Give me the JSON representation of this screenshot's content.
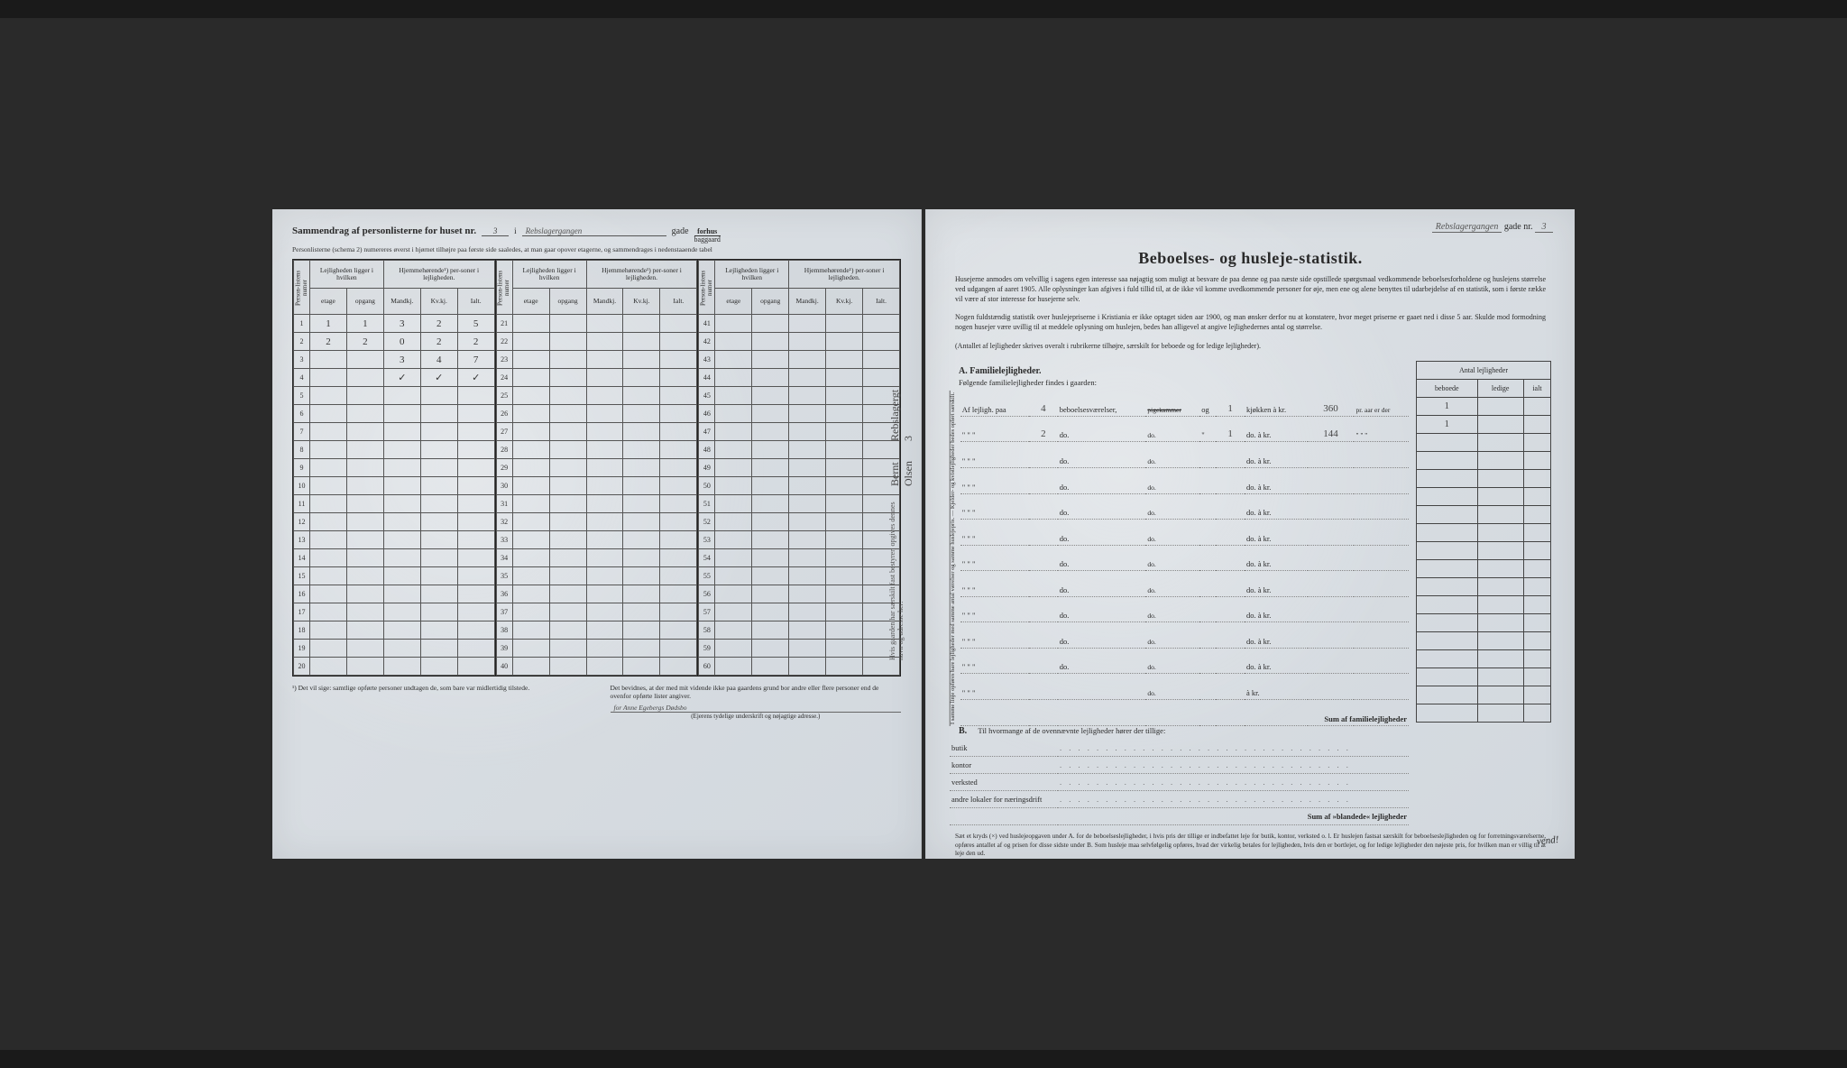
{
  "document": {
    "background_color": "#1a1a1a",
    "page_color": "#d8dce0",
    "ink_color": "#2a2a2a",
    "handwriting_color": "#444444",
    "border_color": "#555555"
  },
  "left_page": {
    "title_prefix": "Sammendrag af personlisterne for huset nr.",
    "house_number": "3",
    "conjunction": "i",
    "street_name": "Rebslagergangen",
    "gade_label": "gade",
    "forhus": "forhus",
    "baggaard": "baggaard",
    "subnote": "Personlisterne (schema 2) numereres øverst i hjørnet tilhøjre paa første side saaledes, at man gaar opover etagerne, og sammendrages i nedenstaaende tabel",
    "col_headers": {
      "personliste": "Person-listens numer",
      "lejlighed_group": "Lejligheden ligger i hvilken",
      "hjemme_group": "Hjemmehørende¹) per-soner i lejligheden.",
      "etage": "etage",
      "opgang": "opgang",
      "mandkj": "Mandkj.",
      "kvkj": "Kv.kj.",
      "ialt": "Ialt."
    },
    "blocks": [
      {
        "start": 1,
        "rows": [
          {
            "n": "1",
            "check": "✓",
            "etage": "1",
            "opgang": "1",
            "m": "3",
            "k": "2",
            "i": "5"
          },
          {
            "n": "2",
            "check": "✓",
            "etage": "2",
            "opgang": "2",
            "m": "0",
            "k": "2",
            "i": "2"
          },
          {
            "n": "3",
            "check": "",
            "etage": "",
            "opgang": "",
            "m": "3",
            "k": "4",
            "i": "7"
          },
          {
            "n": "4",
            "check": "",
            "etage": "",
            "opgang": "",
            "m": "✓",
            "k": "✓",
            "i": "✓"
          },
          {
            "n": "5"
          },
          {
            "n": "6"
          },
          {
            "n": "7"
          },
          {
            "n": "8"
          },
          {
            "n": "9"
          },
          {
            "n": "10"
          },
          {
            "n": "11"
          },
          {
            "n": "12"
          },
          {
            "n": "13"
          },
          {
            "n": "14"
          },
          {
            "n": "15"
          },
          {
            "n": "16"
          },
          {
            "n": "17"
          },
          {
            "n": "18"
          },
          {
            "n": "19"
          },
          {
            "n": "20"
          }
        ]
      },
      {
        "start": 21,
        "rows": [
          {
            "n": "21"
          },
          {
            "n": "22"
          },
          {
            "n": "23"
          },
          {
            "n": "24"
          },
          {
            "n": "25"
          },
          {
            "n": "26"
          },
          {
            "n": "27"
          },
          {
            "n": "28"
          },
          {
            "n": "29"
          },
          {
            "n": "30"
          },
          {
            "n": "31"
          },
          {
            "n": "32"
          },
          {
            "n": "33"
          },
          {
            "n": "34"
          },
          {
            "n": "35"
          },
          {
            "n": "36"
          },
          {
            "n": "37"
          },
          {
            "n": "38"
          },
          {
            "n": "39"
          },
          {
            "n": "40"
          }
        ]
      },
      {
        "start": 41,
        "rows": [
          {
            "n": "41"
          },
          {
            "n": "42"
          },
          {
            "n": "43"
          },
          {
            "n": "44"
          },
          {
            "n": "45"
          },
          {
            "n": "46"
          },
          {
            "n": "47"
          },
          {
            "n": "48"
          },
          {
            "n": "49"
          },
          {
            "n": "50"
          },
          {
            "n": "51"
          },
          {
            "n": "52"
          },
          {
            "n": "53"
          },
          {
            "n": "54"
          },
          {
            "n": "55"
          },
          {
            "n": "56"
          },
          {
            "n": "57"
          },
          {
            "n": "58"
          },
          {
            "n": "59"
          },
          {
            "n": "60"
          }
        ]
      }
    ],
    "footnote1": "¹) Det vil sige: samtlige opførte personer undtagen de, som bare var midlertidig tilstede.",
    "footnote2_a": "Det bevidnes, at der med mit vidende ikke paa gaardens grund bor andre eller flere personer end de ovenfor opførte lister angiver.",
    "signature": "for Anne Egebergs Dødsbo",
    "signature_note": "(Ejerens tydelige underskrift og nøjagtige adresse.)",
    "vertical_label": "Hvis gaarden har særskilt fast bestyrer, opgives dennes navn og adresse her:",
    "vertical_hand1": "Bernt Olsen",
    "vertical_hand2": "Rebslagergt 3"
  },
  "right_page": {
    "corner_street": "Rebslagergangen",
    "corner_gade": "gade nr.",
    "corner_num": "3",
    "title": "Beboelses- og husleje-statistik.",
    "intro": "Husejerne anmodes om velvillig i sagens egen interesse saa nøjagtig som muligt at besvare de paa denne og paa næste side opstillede spørgsmaal vedkommende beboelsesforholdene og huslejens størrelse ved udgangen af aaret 1905. Alle oplysninger kan afgives i fuld tillid til, at de ikke vil komme uvedkommende personer for øje, men ene og alene benyttes til udarbejdelse af en statistik, som i første række vil være af stor interesse for husejerne selv.",
    "intro2": "Nogen fuldstændig statistik over huslejepriserne i Kristiania er ikke optaget siden aar 1900, og man ønsker derfor nu at konstatere, hvor meget priserne er gaaet ned i disse 5 aar. Skulde mod formodning nogen husejer være uvillig til at meddele oplysning om huslejen, bedes han alligevel at angive lejlighedernes antal og størrelse.",
    "intro3": "(Antallet af lejligheder skrives overalt i rubrikerne tilhøjre, særskilt for beboede og for ledige lejligheder).",
    "section_a": "A.  Familielejligheder.",
    "a_instr": "Følgende familielejligheder findes i gaarden:",
    "brace_text": "I samme linje opføres bare lejligheder med samme antal værelser og samme huslejepris. — Kjelder- og kvistlejligheder bedes opført særskilt.",
    "family_rows": [
      {
        "pre": "Af lejligh. paa",
        "rooms": "4",
        "mid": "beboelsesværelser,",
        "pk": "pigekammer",
        "og": "og",
        "kj": "1",
        "kj_lbl": "kjøkken à kr.",
        "kr": "360",
        "post": "pr. aar er der",
        "b": "1",
        "l": "",
        "i": ""
      },
      {
        "pre": "\"    \"    \"",
        "rooms": "2",
        "mid": "do.",
        "pk": "",
        "og": "\"",
        "kj": "1",
        "kj_lbl": "do.  à kr.",
        "kr": "144",
        "post": "\"   \"   \"",
        "b": "1",
        "l": "",
        "i": ""
      },
      {
        "pre": "\"    \"    \"",
        "rooms": "",
        "mid": "do.",
        "pk": "",
        "og": "",
        "kj": "",
        "kj_lbl": "do.  à kr.",
        "kr": "",
        "post": "",
        "b": "",
        "l": "",
        "i": ""
      },
      {
        "pre": "\"    \"    \"",
        "rooms": "",
        "mid": "do.",
        "pk": "",
        "og": "",
        "kj": "",
        "kj_lbl": "do.  à kr.",
        "kr": "",
        "post": "",
        "b": "",
        "l": "",
        "i": ""
      },
      {
        "pre": "\"    \"    \"",
        "rooms": "",
        "mid": "do.",
        "pk": "",
        "og": "",
        "kj": "",
        "kj_lbl": "do.  à kr.",
        "kr": "",
        "post": "",
        "b": "",
        "l": "",
        "i": ""
      },
      {
        "pre": "\"    \"    \"",
        "rooms": "",
        "mid": "do.",
        "pk": "",
        "og": "",
        "kj": "",
        "kj_lbl": "do.  à kr.",
        "kr": "",
        "post": "",
        "b": "",
        "l": "",
        "i": ""
      },
      {
        "pre": "\"    \"    \"",
        "rooms": "",
        "mid": "do.",
        "pk": "",
        "og": "",
        "kj": "",
        "kj_lbl": "do.  à kr.",
        "kr": "",
        "post": "",
        "b": "",
        "l": "",
        "i": ""
      },
      {
        "pre": "\"    \"    \"",
        "rooms": "",
        "mid": "do.",
        "pk": "",
        "og": "",
        "kj": "",
        "kj_lbl": "do.  à kr.",
        "kr": "",
        "post": "",
        "b": "",
        "l": "",
        "i": ""
      },
      {
        "pre": "\"    \"    \"",
        "rooms": "",
        "mid": "do.",
        "pk": "",
        "og": "",
        "kj": "",
        "kj_lbl": "do.  à kr.",
        "kr": "",
        "post": "",
        "b": "",
        "l": "",
        "i": ""
      },
      {
        "pre": "\"    \"    \"",
        "rooms": "",
        "mid": "do.",
        "pk": "",
        "og": "",
        "kj": "",
        "kj_lbl": "do.  à kr.",
        "kr": "",
        "post": "",
        "b": "",
        "l": "",
        "i": ""
      },
      {
        "pre": "\"    \"    \"",
        "rooms": "",
        "mid": "do.",
        "pk": "",
        "og": "",
        "kj": "",
        "kj_lbl": "do.  à kr.",
        "kr": "",
        "post": "",
        "b": "",
        "l": "",
        "i": ""
      },
      {
        "pre": "\"    \"    \"",
        "rooms": "",
        "mid": "",
        "pk": "",
        "og": "",
        "kj": "",
        "kj_lbl": "à kr.",
        "kr": "",
        "post": "",
        "b": "",
        "l": "",
        "i": ""
      }
    ],
    "sum_a": "Sum af familielejligheder",
    "antal_header": "Antal lejligheder",
    "antal_cols": [
      "beboede",
      "ledige",
      "ialt"
    ],
    "section_b": "B.",
    "b_text": "Til hvormange af de ovennævnte lejligheder hører der tillige:",
    "b_rows": [
      "butik",
      "kontor",
      "verksted",
      "andre lokaler for næringsdrift"
    ],
    "sum_b": "Sum af »blandede« lejligheder",
    "footer": "Sæt et kryds (×) ved huslejeopgaven under A. for de beboelseslejligheder, i hvis pris der tillige er indbefattet leje for butik, kontor, verksted o. l. Er huslejen fastsat særskilt for beboelseslejligheden og for forretningsværelserne, opføres antallet af og prisen for disse sidste under B. Som husleje maa selvfølgelig opføres, hvad der virkelig betales for lejligheden, hvis den er bortlejet, og for ledige lejligheder den nøjeste pris, for hvilken man er villig til at leje den ud.",
    "vend": "vend!"
  }
}
